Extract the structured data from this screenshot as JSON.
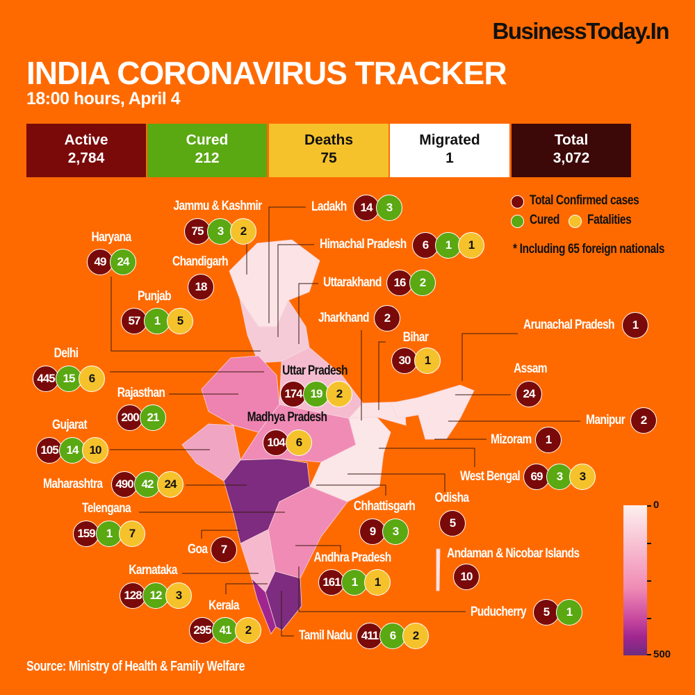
{
  "brand": "BusinessToday.In",
  "title": "INDIA CORONAVIRUS TRACKER",
  "subtitle": "18:00 hours, April 4",
  "summary": [
    {
      "label": "Active",
      "value": "2,784",
      "color": "#7a0a0a"
    },
    {
      "label": "Cured",
      "value": "212",
      "color": "#5aa812"
    },
    {
      "label": "Deaths",
      "value": "75",
      "color": "#f5c22c"
    },
    {
      "label": "Migrated",
      "value": "1",
      "color": "#ffffff"
    },
    {
      "label": "Total",
      "value": "3,072",
      "color": "#3d0808"
    }
  ],
  "legend": {
    "confirmed": "Total Confirmed cases",
    "cured": "Cured",
    "fatalities": "Fatalities",
    "note": "* Including 65 foreign nationals",
    "colors": {
      "confirmed": "#7a0a0a",
      "cured": "#5aa812",
      "fatalities": "#f5c22c"
    }
  },
  "scale": {
    "min": "0",
    "max": "500"
  },
  "states": [
    {
      "name": "Jammu & Kashmir",
      "values": [
        "75",
        "3",
        "2"
      ]
    },
    {
      "name": "Ladakh",
      "values": [
        "14",
        "3"
      ]
    },
    {
      "name": "Himachal Pradesh",
      "values": [
        "6",
        "1",
        "1"
      ]
    },
    {
      "name": "Uttarakhand",
      "values": [
        "16",
        "2"
      ]
    },
    {
      "name": "Haryana",
      "values": [
        "49",
        "24"
      ]
    },
    {
      "name": "Chandigarh",
      "values": [
        "18"
      ]
    },
    {
      "name": "Punjab",
      "values": [
        "57",
        "1",
        "5"
      ]
    },
    {
      "name": "Jharkhand",
      "values": [
        "2"
      ]
    },
    {
      "name": "Bihar",
      "values": [
        "30",
        null,
        "1"
      ]
    },
    {
      "name": "Arunachal Pradesh",
      "values": [
        "1"
      ]
    },
    {
      "name": "Delhi",
      "values": [
        "445",
        "15",
        "6"
      ]
    },
    {
      "name": "Uttar Pradesh",
      "values": [
        "174",
        "19",
        "2"
      ]
    },
    {
      "name": "Assam",
      "values": [
        "24"
      ]
    },
    {
      "name": "Rajasthan",
      "values": [
        "200",
        "21"
      ]
    },
    {
      "name": "Gujarat",
      "values": [
        "105",
        "14",
        "10"
      ]
    },
    {
      "name": "Madhya Pradesh",
      "values": [
        "104",
        null,
        "6"
      ]
    },
    {
      "name": "Manipur",
      "values": [
        "2"
      ]
    },
    {
      "name": "Mizoram",
      "values": [
        "1"
      ]
    },
    {
      "name": "West Bengal",
      "values": [
        "69",
        "3",
        "3"
      ]
    },
    {
      "name": "Maharashtra",
      "values": [
        "490",
        "42",
        "24"
      ]
    },
    {
      "name": "Odisha",
      "values": [
        "5"
      ]
    },
    {
      "name": "Chhattisgarh",
      "values": [
        "9",
        "3"
      ]
    },
    {
      "name": "Telengana",
      "values": [
        "159",
        "1",
        "7"
      ]
    },
    {
      "name": "Goa",
      "values": [
        "7"
      ]
    },
    {
      "name": "Andaman & Nicobar Islands",
      "values": [
        "10"
      ]
    },
    {
      "name": "Andhra Pradesh",
      "values": [
        "161",
        "1",
        "1"
      ]
    },
    {
      "name": "Karnataka",
      "values": [
        "128",
        "12",
        "3"
      ]
    },
    {
      "name": "Puducherry",
      "values": [
        "5",
        "1"
      ]
    },
    {
      "name": "Kerala",
      "values": [
        "295",
        "41",
        "2"
      ]
    },
    {
      "name": "Tamil Nadu",
      "values": [
        "411",
        "6",
        "2"
      ]
    }
  ],
  "source": "Source: Ministry of Health & Family Welfare"
}
